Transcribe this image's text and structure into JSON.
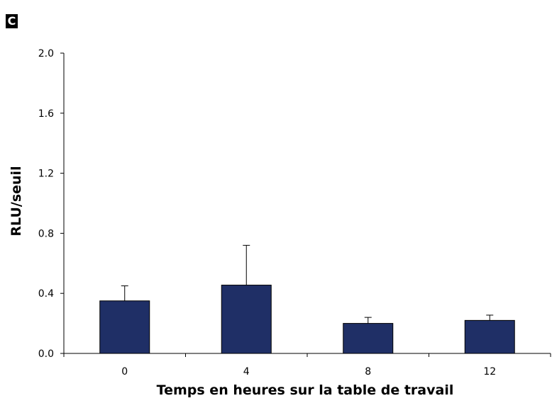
{
  "panel_label": "C",
  "chart_data": {
    "type": "bar",
    "categories": [
      "0",
      "4",
      "8",
      "12"
    ],
    "values": [
      0.35,
      0.455,
      0.2,
      0.22
    ],
    "error_plus": [
      0.1,
      0.265,
      0.04,
      0.035
    ],
    "xlabel": "Temps en heures sur la table de travail",
    "ylabel": "RLU/seuil",
    "ylim": [
      0,
      2.0
    ],
    "yticks": [
      "0.0",
      "0.4",
      "0.8",
      "1.2",
      "1.6",
      "2.0"
    ],
    "grid": false,
    "legend": "none",
    "bar_color": "#1f2f66"
  }
}
